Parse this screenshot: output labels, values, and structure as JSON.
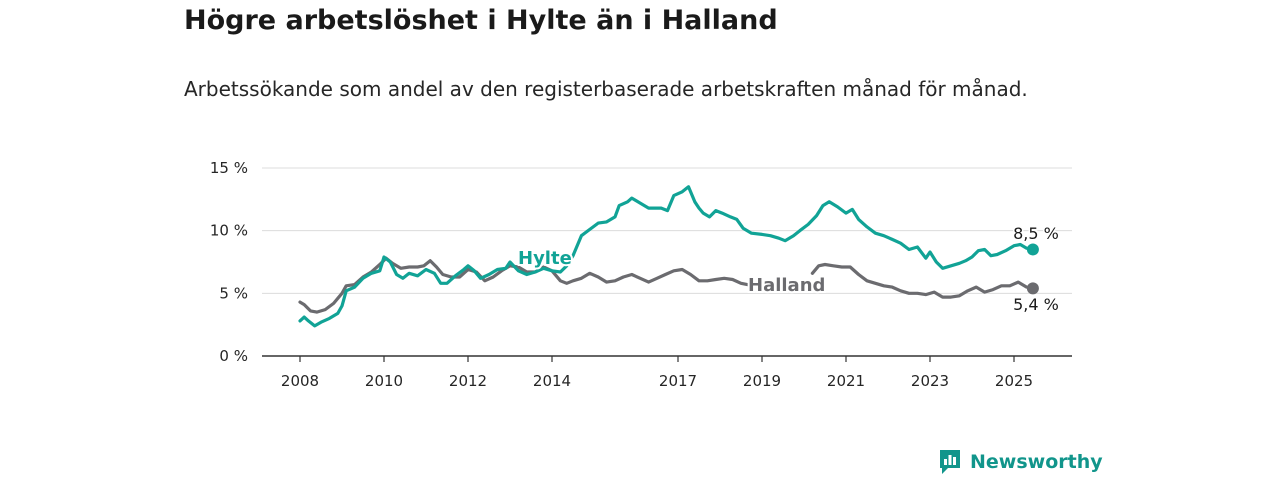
{
  "title": "Högre arbetslöshet i Hylte än i Halland",
  "subtitle": "Arbetssökande som andel av den registerbaserade arbetskraften månad för månad.",
  "brand": {
    "name": "Newsworthy",
    "icon": "newsworthy-logo-icon",
    "color": "#11958b"
  },
  "chart_data": {
    "type": "line",
    "title": "",
    "xlabel": "",
    "ylabel": "",
    "xlim": [
      2008,
      2025.8
    ],
    "ylim": [
      0,
      15
    ],
    "grid": true,
    "y_ticks": [
      {
        "value": 0,
        "label": "0 %"
      },
      {
        "value": 5,
        "label": "5 %"
      },
      {
        "value": 10,
        "label": "10 %"
      },
      {
        "value": 15,
        "label": "15 %"
      }
    ],
    "x_ticks": [
      {
        "value": 2008,
        "label": "2008"
      },
      {
        "value": 2010,
        "label": "2010"
      },
      {
        "value": 2012,
        "label": "2012"
      },
      {
        "value": 2014,
        "label": "2014"
      },
      {
        "value": 2017,
        "label": "2017"
      },
      {
        "value": 2019,
        "label": "2019"
      },
      {
        "value": 2021,
        "label": "2021"
      },
      {
        "value": 2023,
        "label": "2023"
      },
      {
        "value": 2025,
        "label": "2025"
      }
    ],
    "series": [
      {
        "name": "Hylte",
        "color": "#11a396",
        "end_label": "8,5 %",
        "points": [
          [
            2008.0,
            2.8
          ],
          [
            2008.1,
            3.1
          ],
          [
            2008.2,
            2.8
          ],
          [
            2008.35,
            2.4
          ],
          [
            2008.5,
            2.7
          ],
          [
            2008.7,
            3.0
          ],
          [
            2008.9,
            3.4
          ],
          [
            2009.0,
            4.0
          ],
          [
            2009.1,
            5.2
          ],
          [
            2009.3,
            5.5
          ],
          [
            2009.5,
            6.2
          ],
          [
            2009.7,
            6.6
          ],
          [
            2009.9,
            6.8
          ],
          [
            2010.0,
            7.9
          ],
          [
            2010.15,
            7.5
          ],
          [
            2010.3,
            6.5
          ],
          [
            2010.45,
            6.2
          ],
          [
            2010.6,
            6.6
          ],
          [
            2010.8,
            6.4
          ],
          [
            2011.0,
            6.9
          ],
          [
            2011.2,
            6.6
          ],
          [
            2011.35,
            5.8
          ],
          [
            2011.5,
            5.8
          ],
          [
            2011.7,
            6.4
          ],
          [
            2011.9,
            6.9
          ],
          [
            2012.0,
            7.2
          ],
          [
            2012.15,
            6.8
          ],
          [
            2012.3,
            6.2
          ],
          [
            2012.5,
            6.5
          ],
          [
            2012.7,
            6.9
          ],
          [
            2012.9,
            7.0
          ],
          [
            2013.0,
            7.5
          ],
          [
            2013.2,
            6.8
          ],
          [
            2013.4,
            6.5
          ],
          [
            2013.6,
            6.7
          ],
          [
            2013.8,
            7.0
          ],
          [
            2014.0,
            6.8
          ],
          [
            2014.2,
            6.7
          ],
          [
            2014.35,
            7.2
          ],
          [
            2014.5,
            8.0
          ],
          [
            2014.7,
            9.6
          ],
          [
            2014.9,
            10.1
          ],
          [
            2015.1,
            10.6
          ],
          [
            2015.3,
            10.7
          ],
          [
            2015.5,
            11.1
          ],
          [
            2015.6,
            12.0
          ],
          [
            2015.8,
            12.3
          ],
          [
            2015.9,
            12.6
          ],
          [
            2016.1,
            12.2
          ],
          [
            2016.3,
            11.8
          ],
          [
            2016.6,
            11.8
          ],
          [
            2016.75,
            11.6
          ],
          [
            2016.9,
            12.8
          ],
          [
            2017.1,
            13.1
          ],
          [
            2017.25,
            13.5
          ],
          [
            2017.4,
            12.3
          ],
          [
            2017.5,
            11.8
          ],
          [
            2017.6,
            11.4
          ],
          [
            2017.75,
            11.1
          ],
          [
            2017.9,
            11.6
          ],
          [
            2018.05,
            11.4
          ],
          [
            2018.25,
            11.1
          ],
          [
            2018.4,
            10.9
          ],
          [
            2018.55,
            10.2
          ],
          [
            2018.75,
            9.8
          ],
          [
            2019.0,
            9.7
          ],
          [
            2019.2,
            9.6
          ],
          [
            2019.4,
            9.4
          ],
          [
            2019.55,
            9.2
          ],
          [
            2019.75,
            9.6
          ],
          [
            2019.9,
            10.0
          ],
          [
            2020.1,
            10.5
          ],
          [
            2020.3,
            11.2
          ],
          [
            2020.45,
            12.0
          ],
          [
            2020.6,
            12.3
          ],
          [
            2020.8,
            11.9
          ],
          [
            2021.0,
            11.4
          ],
          [
            2021.15,
            11.7
          ],
          [
            2021.3,
            10.9
          ],
          [
            2021.5,
            10.3
          ],
          [
            2021.7,
            9.8
          ],
          [
            2021.9,
            9.6
          ],
          [
            2022.1,
            9.3
          ],
          [
            2022.3,
            9.0
          ],
          [
            2022.5,
            8.5
          ],
          [
            2022.7,
            8.7
          ],
          [
            2022.9,
            7.8
          ],
          [
            2023.0,
            8.3
          ],
          [
            2023.15,
            7.5
          ],
          [
            2023.3,
            7.0
          ],
          [
            2023.5,
            7.2
          ],
          [
            2023.7,
            7.4
          ],
          [
            2023.85,
            7.6
          ],
          [
            2024.0,
            7.9
          ],
          [
            2024.15,
            8.4
          ],
          [
            2024.3,
            8.5
          ],
          [
            2024.45,
            8.0
          ],
          [
            2024.6,
            8.1
          ],
          [
            2024.8,
            8.4
          ],
          [
            2025.0,
            8.8
          ],
          [
            2025.15,
            8.9
          ],
          [
            2025.3,
            8.6
          ],
          [
            2025.45,
            8.5
          ]
        ]
      },
      {
        "name": "Halland",
        "color": "#6b6b6f",
        "end_label": "5,4 %",
        "points": [
          [
            2008.0,
            4.3
          ],
          [
            2008.1,
            4.1
          ],
          [
            2008.25,
            3.6
          ],
          [
            2008.4,
            3.5
          ],
          [
            2008.6,
            3.7
          ],
          [
            2008.8,
            4.2
          ],
          [
            2009.0,
            5.0
          ],
          [
            2009.1,
            5.6
          ],
          [
            2009.3,
            5.7
          ],
          [
            2009.5,
            6.3
          ],
          [
            2009.7,
            6.7
          ],
          [
            2009.9,
            7.3
          ],
          [
            2010.05,
            7.8
          ],
          [
            2010.2,
            7.4
          ],
          [
            2010.4,
            7.0
          ],
          [
            2010.6,
            7.1
          ],
          [
            2010.8,
            7.1
          ],
          [
            2010.95,
            7.2
          ],
          [
            2011.1,
            7.6
          ],
          [
            2011.25,
            7.1
          ],
          [
            2011.4,
            6.5
          ],
          [
            2011.6,
            6.3
          ],
          [
            2011.8,
            6.3
          ],
          [
            2012.0,
            6.9
          ],
          [
            2012.2,
            6.7
          ],
          [
            2012.4,
            6.0
          ],
          [
            2012.6,
            6.3
          ],
          [
            2012.8,
            6.8
          ],
          [
            2013.0,
            7.2
          ],
          [
            2013.2,
            7.1
          ],
          [
            2013.4,
            6.7
          ],
          [
            2013.6,
            6.7
          ],
          [
            2013.8,
            7.1
          ],
          [
            2014.0,
            6.8
          ],
          [
            2014.2,
            6.0
          ],
          [
            2014.35,
            5.8
          ],
          [
            2014.5,
            6.0
          ],
          [
            2014.7,
            6.2
          ],
          [
            2014.9,
            6.6
          ],
          [
            2015.1,
            6.3
          ],
          [
            2015.3,
            5.9
          ],
          [
            2015.5,
            6.0
          ],
          [
            2015.7,
            6.3
          ],
          [
            2015.9,
            6.5
          ],
          [
            2016.1,
            6.2
          ],
          [
            2016.3,
            5.9
          ],
          [
            2016.5,
            6.2
          ],
          [
            2016.7,
            6.5
          ],
          [
            2016.9,
            6.8
          ],
          [
            2017.1,
            6.9
          ],
          [
            2017.3,
            6.5
          ],
          [
            2017.5,
            6.0
          ],
          [
            2017.7,
            6.0
          ],
          [
            2017.9,
            6.1
          ],
          [
            2018.1,
            6.2
          ],
          [
            2018.3,
            6.1
          ],
          [
            2018.5,
            5.8
          ],
          [
            2018.65,
            5.7
          ],
          null,
          [
            2020.2,
            6.6
          ],
          [
            2020.35,
            7.2
          ],
          [
            2020.5,
            7.3
          ],
          [
            2020.7,
            7.2
          ],
          [
            2020.9,
            7.1
          ],
          [
            2021.1,
            7.1
          ],
          [
            2021.3,
            6.5
          ],
          [
            2021.5,
            6.0
          ],
          [
            2021.7,
            5.8
          ],
          [
            2021.9,
            5.6
          ],
          [
            2022.1,
            5.5
          ],
          [
            2022.3,
            5.2
          ],
          [
            2022.5,
            5.0
          ],
          [
            2022.7,
            5.0
          ],
          [
            2022.9,
            4.9
          ],
          [
            2023.1,
            5.1
          ],
          [
            2023.3,
            4.7
          ],
          [
            2023.5,
            4.7
          ],
          [
            2023.7,
            4.8
          ],
          [
            2023.9,
            5.2
          ],
          [
            2024.1,
            5.5
          ],
          [
            2024.3,
            5.1
          ],
          [
            2024.5,
            5.3
          ],
          [
            2024.7,
            5.6
          ],
          [
            2024.9,
            5.6
          ],
          [
            2025.1,
            5.9
          ],
          [
            2025.3,
            5.5
          ],
          [
            2025.45,
            5.4
          ]
        ]
      }
    ],
    "annotations": [
      {
        "text": "8,5 %",
        "series": "Hylte"
      },
      {
        "text": "5,4 %",
        "series": "Halland"
      }
    ]
  }
}
